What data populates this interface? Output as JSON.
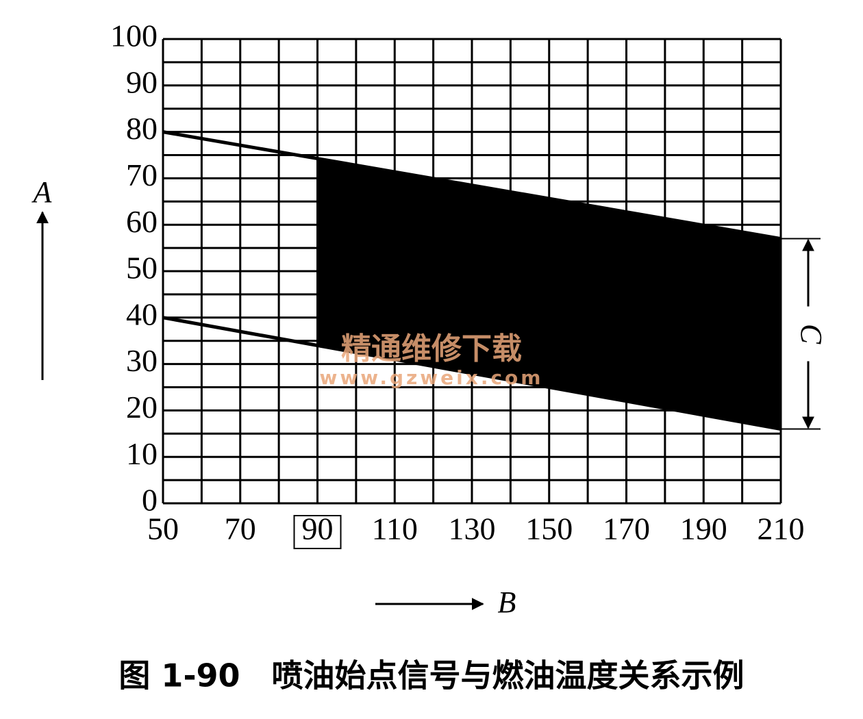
{
  "chart_data": {
    "type": "band",
    "caption": "图 1-90　喷油始点信号与燃油温度关系示例",
    "xlabel": "B",
    "ylabel": "A",
    "annotation": "C",
    "watermark": [
      "精通维修下载",
      "www.gzweix.com"
    ],
    "x": [
      50,
      90,
      210
    ],
    "series": [
      {
        "name": "upper",
        "color": "#000000",
        "values": [
          80,
          74.25,
          57
        ]
      },
      {
        "name": "lower",
        "color": "#000000",
        "values": [
          40,
          34,
          16
        ]
      }
    ],
    "shaded_x": [
      90,
      210
    ],
    "fill_color": "#000000",
    "xlim": [
      50,
      210
    ],
    "ylim": [
      0,
      100
    ],
    "xticks": [
      50,
      70,
      90,
      110,
      130,
      150,
      170,
      190,
      210
    ],
    "yticks": [
      0,
      10,
      20,
      30,
      40,
      50,
      60,
      70,
      80,
      90,
      100
    ],
    "boxed_xticks": [
      90
    ],
    "xgrid": [
      50,
      60,
      70,
      80,
      90,
      100,
      110,
      120,
      130,
      140,
      150,
      160,
      170,
      180,
      190,
      200,
      210
    ],
    "ygrid": [
      0,
      5,
      10,
      15,
      20,
      25,
      30,
      35,
      40,
      45,
      50,
      55,
      60,
      65,
      70,
      75,
      80,
      85,
      90,
      95,
      100
    ],
    "grid": true
  }
}
